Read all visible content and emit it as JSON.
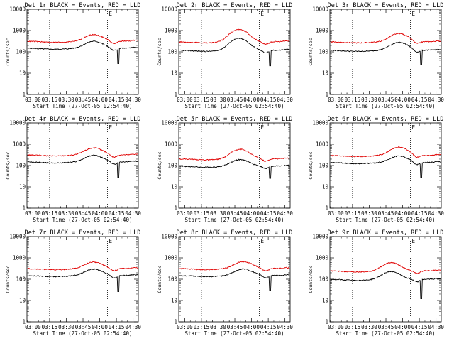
{
  "chart_data": [
    {
      "type": "line",
      "title": "Det 1r BLACK = Events, RED = LLD",
      "start_label": "Start Time (27-Oct-05 02:54:40)",
      "ylabel": "Counts/sec",
      "marker": "E",
      "yscale": "log",
      "ylim": [
        1,
        10000
      ],
      "xlim_min": [
        0,
        100
      ],
      "x_ticks": [
        "03:00",
        "03:15",
        "03:30",
        "03:45",
        "04:00",
        "04:15",
        "04:30"
      ],
      "x_tick_minutes": [
        5.33,
        20.33,
        35.33,
        50.33,
        65.33,
        80.33,
        95.33
      ],
      "y_ticks": [
        "1",
        "10",
        "100",
        "1000",
        "10000"
      ],
      "y_tick_values": [
        1,
        10,
        100,
        1000,
        10000
      ],
      "dotted_lines_min": [
        20.33,
        72.33
      ],
      "series": [
        {
          "name": "Events",
          "color": "#000000",
          "base": 150,
          "peak": 2.1,
          "peak_at": 60,
          "dip": 28,
          "dip_at": 82
        },
        {
          "name": "LLD",
          "color": "#e00000",
          "base": 320,
          "peak": 2.0,
          "peak_at": 60
        }
      ]
    },
    {
      "type": "line",
      "title": "Det 2r BLACK = Events, RED = LLD",
      "start_label": "Start Time (27-Oct-05 02:54:40)",
      "ylabel": "Counts/sec",
      "marker": "E",
      "yscale": "log",
      "ylim": [
        1,
        10000
      ],
      "xlim_min": [
        0,
        100
      ],
      "x_ticks": [
        "03:00",
        "03:15",
        "03:30",
        "03:45",
        "04:00",
        "04:15",
        "04:30"
      ],
      "x_tick_minutes": [
        5.33,
        20.33,
        35.33,
        50.33,
        65.33,
        80.33,
        95.33
      ],
      "y_ticks": [
        "1",
        "10",
        "100",
        "1000",
        "10000"
      ],
      "y_tick_values": [
        1,
        10,
        100,
        1000,
        10000
      ],
      "dotted_lines_min": [
        20.33,
        72.33
      ],
      "series": [
        {
          "name": "Events",
          "color": "#000000",
          "base": 120,
          "peak": 3.6,
          "peak_at": 54,
          "dip": 22,
          "dip_at": 82
        },
        {
          "name": "LLD",
          "color": "#e00000",
          "base": 300,
          "peak": 3.8,
          "peak_at": 54
        }
      ]
    },
    {
      "type": "line",
      "title": "Det 3r BLACK = Events, RED = LLD",
      "start_label": "Start Time (27-Oct-05 02:54:40)",
      "ylabel": "Counts/sec",
      "marker": "E",
      "yscale": "log",
      "ylim": [
        1,
        10000
      ],
      "xlim_min": [
        0,
        100
      ],
      "x_ticks": [
        "03:00",
        "03:15",
        "03:30",
        "03:45",
        "04:00",
        "04:15",
        "04:30"
      ],
      "x_tick_minutes": [
        5.33,
        20.33,
        35.33,
        50.33,
        65.33,
        80.33,
        95.33
      ],
      "y_ticks": [
        "1",
        "10",
        "100",
        "1000",
        "10000"
      ],
      "y_tick_values": [
        1,
        10,
        100,
        1000,
        10000
      ],
      "dotted_lines_min": [
        20.33,
        72.33
      ],
      "series": [
        {
          "name": "Events",
          "color": "#000000",
          "base": 120,
          "peak": 2.3,
          "peak_at": 62,
          "dip": 25,
          "dip_at": 82
        },
        {
          "name": "LLD",
          "color": "#e00000",
          "base": 300,
          "peak": 2.4,
          "peak_at": 62
        }
      ]
    },
    {
      "type": "line",
      "title": "Det 4r BLACK = Events, RED = LLD",
      "start_label": "Start Time (27-Oct-05 02:54:40)",
      "ylabel": "Counts/sec",
      "marker": "E",
      "yscale": "log",
      "ylim": [
        1,
        10000
      ],
      "xlim_min": [
        0,
        100
      ],
      "x_ticks": [
        "03:00",
        "03:15",
        "03:30",
        "03:45",
        "04:00",
        "04:15",
        "04:30"
      ],
      "x_tick_minutes": [
        5.33,
        20.33,
        35.33,
        50.33,
        65.33,
        80.33,
        95.33
      ],
      "y_ticks": [
        "1",
        "10",
        "100",
        "1000",
        "10000"
      ],
      "y_tick_values": [
        1,
        10,
        100,
        1000,
        10000
      ],
      "dotted_lines_min": [
        20.33,
        72.33
      ],
      "series": [
        {
          "name": "Events",
          "color": "#000000",
          "base": 150,
          "peak": 2.0,
          "peak_at": 60,
          "dip": 28,
          "dip_at": 82
        },
        {
          "name": "LLD",
          "color": "#e00000",
          "base": 320,
          "peak": 2.1,
          "peak_at": 60
        }
      ]
    },
    {
      "type": "line",
      "title": "Det 5r BLACK = Events, RED = LLD",
      "start_label": "Start Time (27-Oct-05 02:54:40)",
      "ylabel": "Counts/sec",
      "marker": "E",
      "yscale": "log",
      "ylim": [
        1,
        10000
      ],
      "xlim_min": [
        0,
        100
      ],
      "x_ticks": [
        "03:00",
        "03:15",
        "03:30",
        "03:45",
        "04:00",
        "04:15",
        "04:30"
      ],
      "x_tick_minutes": [
        5.33,
        20.33,
        35.33,
        50.33,
        65.33,
        80.33,
        95.33
      ],
      "y_ticks": [
        "1",
        "10",
        "100",
        "1000",
        "10000"
      ],
      "y_tick_values": [
        1,
        10,
        100,
        1000,
        10000
      ],
      "dotted_lines_min": [
        20.33,
        72.33
      ],
      "series": [
        {
          "name": "Events",
          "color": "#000000",
          "base": 95,
          "peak": 2.0,
          "peak_at": 55,
          "dip": 25,
          "dip_at": 82
        },
        {
          "name": "LLD",
          "color": "#e00000",
          "base": 210,
          "peak": 2.8,
          "peak_at": 55
        }
      ]
    },
    {
      "type": "line",
      "title": "Det 6r BLACK = Events, RED = LLD",
      "start_label": "Start Time (27-Oct-05 02:54:40)",
      "ylabel": "Counts/sec",
      "marker": "E",
      "yscale": "log",
      "ylim": [
        1,
        10000
      ],
      "xlim_min": [
        0,
        100
      ],
      "x_ticks": [
        "03:00",
        "03:15",
        "03:30",
        "03:45",
        "04:00",
        "04:15",
        "04:30"
      ],
      "x_tick_minutes": [
        5.33,
        20.33,
        35.33,
        50.33,
        65.33,
        80.33,
        95.33
      ],
      "y_ticks": [
        "1",
        "10",
        "100",
        "1000",
        "10000"
      ],
      "y_tick_values": [
        1,
        10,
        100,
        1000,
        10000
      ],
      "dotted_lines_min": [
        20.33,
        72.33
      ],
      "series": [
        {
          "name": "Events",
          "color": "#000000",
          "base": 140,
          "peak": 2.0,
          "peak_at": 62,
          "dip": 28,
          "dip_at": 82
        },
        {
          "name": "LLD",
          "color": "#e00000",
          "base": 300,
          "peak": 2.4,
          "peak_at": 62
        }
      ]
    },
    {
      "type": "line",
      "title": "Det 7r BLACK = Events, RED = LLD",
      "start_label": "Start Time (27-Oct-05 02:54:40)",
      "ylabel": "Counts/sec",
      "marker": "E",
      "yscale": "log",
      "ylim": [
        1,
        10000
      ],
      "xlim_min": [
        0,
        100
      ],
      "x_ticks": [
        "03:00",
        "03:15",
        "03:30",
        "03:45",
        "04:00",
        "04:15",
        "04:30"
      ],
      "x_tick_minutes": [
        5.33,
        20.33,
        35.33,
        50.33,
        65.33,
        80.33,
        95.33
      ],
      "y_ticks": [
        "1",
        "10",
        "100",
        "1000",
        "10000"
      ],
      "y_tick_values": [
        1,
        10,
        100,
        1000,
        10000
      ],
      "dotted_lines_min": [
        20.33,
        72.33
      ],
      "series": [
        {
          "name": "Events",
          "color": "#000000",
          "base": 150,
          "peak": 2.0,
          "peak_at": 60,
          "dip": 26,
          "dip_at": 82
        },
        {
          "name": "LLD",
          "color": "#e00000",
          "base": 320,
          "peak": 2.0,
          "peak_at": 60
        }
      ]
    },
    {
      "type": "line",
      "title": "Det 8r BLACK = Events, RED = LLD",
      "start_label": "Start Time (27-Oct-05 02:54:40)",
      "ylabel": "Counts/sec",
      "marker": "E",
      "yscale": "log",
      "ylim": [
        1,
        10000
      ],
      "xlim_min": [
        0,
        100
      ],
      "x_ticks": [
        "03:00",
        "03:15",
        "03:30",
        "03:45",
        "04:00",
        "04:15",
        "04:30"
      ],
      "x_tick_minutes": [
        5.33,
        20.33,
        35.33,
        50.33,
        65.33,
        80.33,
        95.33
      ],
      "y_ticks": [
        "1",
        "10",
        "100",
        "1000",
        "10000"
      ],
      "y_tick_values": [
        1,
        10,
        100,
        1000,
        10000
      ],
      "dotted_lines_min": [
        20.33,
        72.33
      ],
      "series": [
        {
          "name": "Events",
          "color": "#000000",
          "base": 150,
          "peak": 2.0,
          "peak_at": 58,
          "dip": 30,
          "dip_at": 82
        },
        {
          "name": "LLD",
          "color": "#e00000",
          "base": 320,
          "peak": 2.1,
          "peak_at": 58
        }
      ]
    },
    {
      "type": "line",
      "title": "Det 9r BLACK = Events, RED = LLD",
      "start_label": "Start Time (27-Oct-05 02:54:40)",
      "ylabel": "Counts/sec",
      "marker": "E",
      "yscale": "log",
      "ylim": [
        1,
        10000
      ],
      "xlim_min": [
        0,
        100
      ],
      "x_ticks": [
        "03:00",
        "03:15",
        "03:30",
        "03:45",
        "04:00",
        "04:15",
        "04:30"
      ],
      "x_tick_minutes": [
        5.33,
        20.33,
        35.33,
        50.33,
        65.33,
        80.33,
        95.33
      ],
      "y_ticks": [
        "1",
        "10",
        "100",
        "1000",
        "10000"
      ],
      "y_tick_values": [
        1,
        10,
        100,
        1000,
        10000
      ],
      "dotted_lines_min": [
        20.33,
        72.33
      ],
      "series": [
        {
          "name": "Events",
          "color": "#000000",
          "base": 100,
          "peak": 2.3,
          "peak_at": 55,
          "dip": 12,
          "dip_at": 82
        },
        {
          "name": "LLD",
          "color": "#e00000",
          "base": 250,
          "peak": 2.4,
          "peak_at": 55
        }
      ]
    }
  ]
}
